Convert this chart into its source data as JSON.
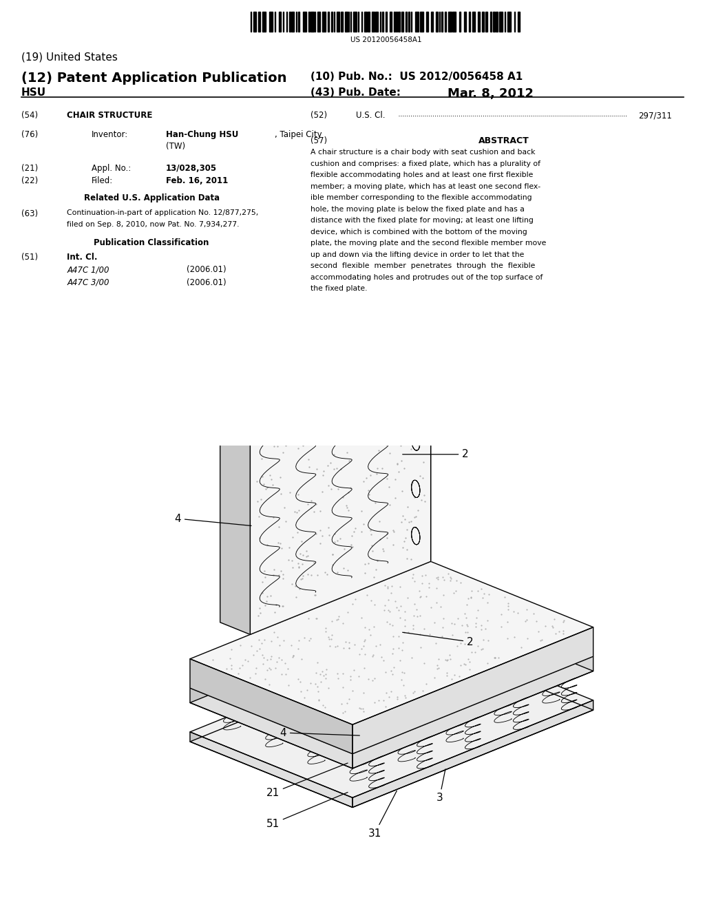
{
  "background_color": "#ffffff",
  "barcode_text": "US 20120056458A1",
  "header_19": "(19) United States",
  "header_12_left": "(12) Patent Application Publication",
  "header_hsu": "HSU",
  "header_10": "(10) Pub. No.:  US 2012/0056458 A1",
  "header_43_label": "(43) Pub. Date:",
  "header_date": "Mar. 8, 2012",
  "field_54_label": "(54)",
  "field_54_value": "CHAIR STRUCTURE",
  "field_52_label": "(52)",
  "field_52_key": "U.S. Cl.",
  "field_52_class": "297/311",
  "field_76_label": "(76)",
  "field_76_key": "Inventor:",
  "field_76_bold": "Han-Chung HSU",
  "field_76_city": ", Taipei City",
  "field_76_country": "(TW)",
  "field_57_label": "(57)",
  "field_57_header": "ABSTRACT",
  "abstract_text": "A chair structure is a chair body with seat cushion and back cushion and comprises: a fixed plate, which has a plurality of flexible accommodating holes and at least one first flexible member; a moving plate, which has at least one second flexible member corresponding to the flexible accommodating hole, the moving plate is below the fixed plate and has a distance with the fixed plate for moving; at least one lifting device, which is combined with the bottom of the moving plate, the moving plate and the second flexible member move up and down via the lifting device in order to let that the second flexible member penetrates through the flexible accommodating holes and protrudes out of the top surface of the fixed plate.",
  "field_21_label": "(21)",
  "field_21_key": "Appl. No.:",
  "field_21_value": "13/028,305",
  "field_22_label": "(22)",
  "field_22_key": "Filed:",
  "field_22_value": "Feb. 16, 2011",
  "related_header": "Related U.S. Application Data",
  "field_63_label": "(63)",
  "field_63_line1": "Continuation-in-part of application No. 12/877,275,",
  "field_63_line2": "filed on Sep. 8, 2010, now Pat. No. 7,934,277.",
  "pub_class_header": "Publication Classification",
  "field_51_label": "(51)",
  "field_51_key": "Int. Cl.",
  "field_51_class1": "A47C 1/00",
  "field_51_date1": "(2006.01)",
  "field_51_class2": "A47C 3/00",
  "field_51_date2": "(2006.01)",
  "text_color": "#000000"
}
